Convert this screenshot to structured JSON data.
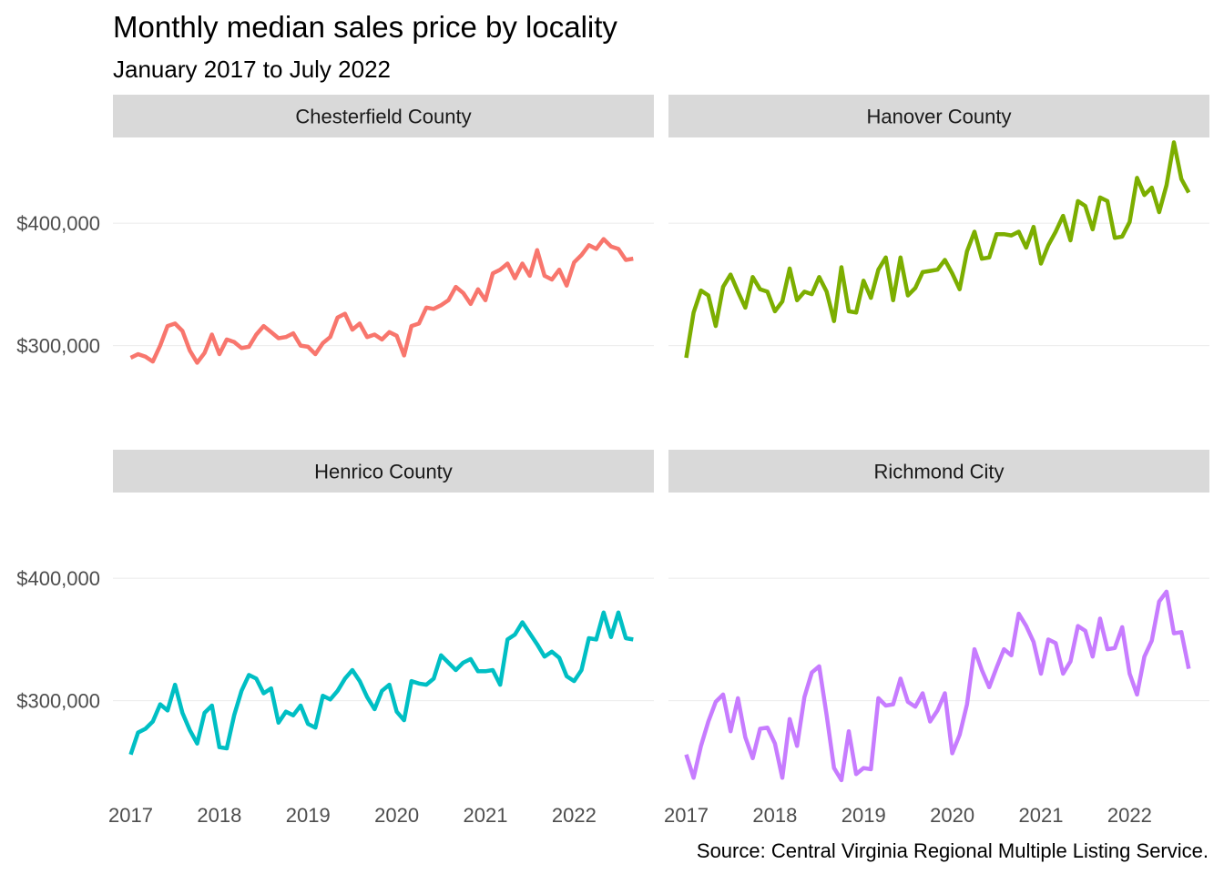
{
  "chart_data": {
    "type": "line",
    "title": "Monthly median sales price by locality",
    "subtitle": "January 2017 to July 2022",
    "caption": "Source: Central Virginia Regional Multiple Listing Service.",
    "xlabel": "",
    "ylabel": "",
    "x_ticks": [
      "2017",
      "2018",
      "2019",
      "2020",
      "2021",
      "2022"
    ],
    "y_ticks": [
      300000,
      400000
    ],
    "y_tick_labels": [
      "$300,000",
      "$400,000"
    ],
    "ylim": [
      235000,
      470000
    ],
    "xlim_years": [
      2016.8,
      2022.9
    ],
    "grid": true,
    "legend": "none",
    "x_start_year": 2017,
    "facets": [
      {
        "name": "Chesterfield County",
        "color": "#F8766D",
        "values": [
          290000,
          293000,
          291000,
          287000,
          300000,
          316000,
          318000,
          312000,
          296000,
          286000,
          294000,
          309000,
          293000,
          305000,
          303000,
          298000,
          299000,
          309000,
          316000,
          311000,
          306000,
          307000,
          310000,
          300000,
          299000,
          293000,
          302000,
          307000,
          323000,
          326000,
          313000,
          318000,
          307000,
          309000,
          305000,
          311000,
          308000,
          292000,
          316000,
          318000,
          331000,
          330000,
          333000,
          337000,
          348000,
          343000,
          334000,
          346000,
          337000,
          359000,
          362000,
          367000,
          355000,
          367000,
          357000,
          378000,
          357000,
          354000,
          362000,
          349000,
          368000,
          374000,
          382000,
          379000,
          387000,
          381000,
          379000,
          370000,
          371000
        ]
      },
      {
        "name": "Hanover County",
        "color": "#7CAE00",
        "values": [
          290000,
          327000,
          345000,
          341000,
          316000,
          348000,
          358000,
          344000,
          331000,
          356000,
          346000,
          344000,
          328000,
          336000,
          363000,
          337000,
          344000,
          342000,
          356000,
          344000,
          320000,
          364000,
          328000,
          327000,
          353000,
          339000,
          362000,
          372000,
          337000,
          372000,
          341000,
          347000,
          360000,
          361000,
          362000,
          370000,
          359000,
          346000,
          377000,
          393000,
          371000,
          372000,
          391000,
          391000,
          390000,
          393000,
          380000,
          397000,
          367000,
          382000,
          393000,
          406000,
          386000,
          418000,
          414000,
          395000,
          421000,
          418000,
          388000,
          389000,
          401000,
          437000,
          423000,
          429000,
          409000,
          431000,
          466000,
          436000,
          425000
        ]
      },
      {
        "name": "Henrico County",
        "color": "#00BFC4",
        "values": [
          256000,
          274000,
          277000,
          283000,
          297000,
          292000,
          313000,
          290000,
          276000,
          265000,
          290000,
          296000,
          262000,
          261000,
          288000,
          308000,
          321000,
          318000,
          306000,
          310000,
          282000,
          291000,
          288000,
          296000,
          281000,
          278000,
          304000,
          301000,
          308000,
          318000,
          325000,
          316000,
          303000,
          293000,
          308000,
          313000,
          291000,
          284000,
          316000,
          314000,
          313000,
          318000,
          337000,
          331000,
          325000,
          331000,
          334000,
          324000,
          324000,
          325000,
          313000,
          350000,
          354000,
          364000,
          355000,
          346000,
          336000,
          340000,
          335000,
          320000,
          316000,
          325000,
          351000,
          350000,
          372000,
          352000,
          372000,
          351000,
          350000
        ]
      },
      {
        "name": "Richmond City",
        "color": "#C77CFF",
        "values": [
          256000,
          237000,
          263000,
          283000,
          299000,
          305000,
          275000,
          302000,
          270000,
          253000,
          277000,
          278000,
          265000,
          237000,
          285000,
          263000,
          303000,
          323000,
          328000,
          288000,
          245000,
          235000,
          275000,
          240000,
          245000,
          244000,
          302000,
          296000,
          297000,
          318000,
          299000,
          295000,
          306000,
          283000,
          292000,
          306000,
          257000,
          272000,
          297000,
          342000,
          325000,
          311000,
          327000,
          342000,
          337000,
          371000,
          361000,
          348000,
          322000,
          350000,
          347000,
          322000,
          332000,
          361000,
          357000,
          336000,
          367000,
          342000,
          343000,
          360000,
          322000,
          305000,
          336000,
          349000,
          381000,
          389000,
          355000,
          356000,
          326000
        ]
      }
    ]
  }
}
